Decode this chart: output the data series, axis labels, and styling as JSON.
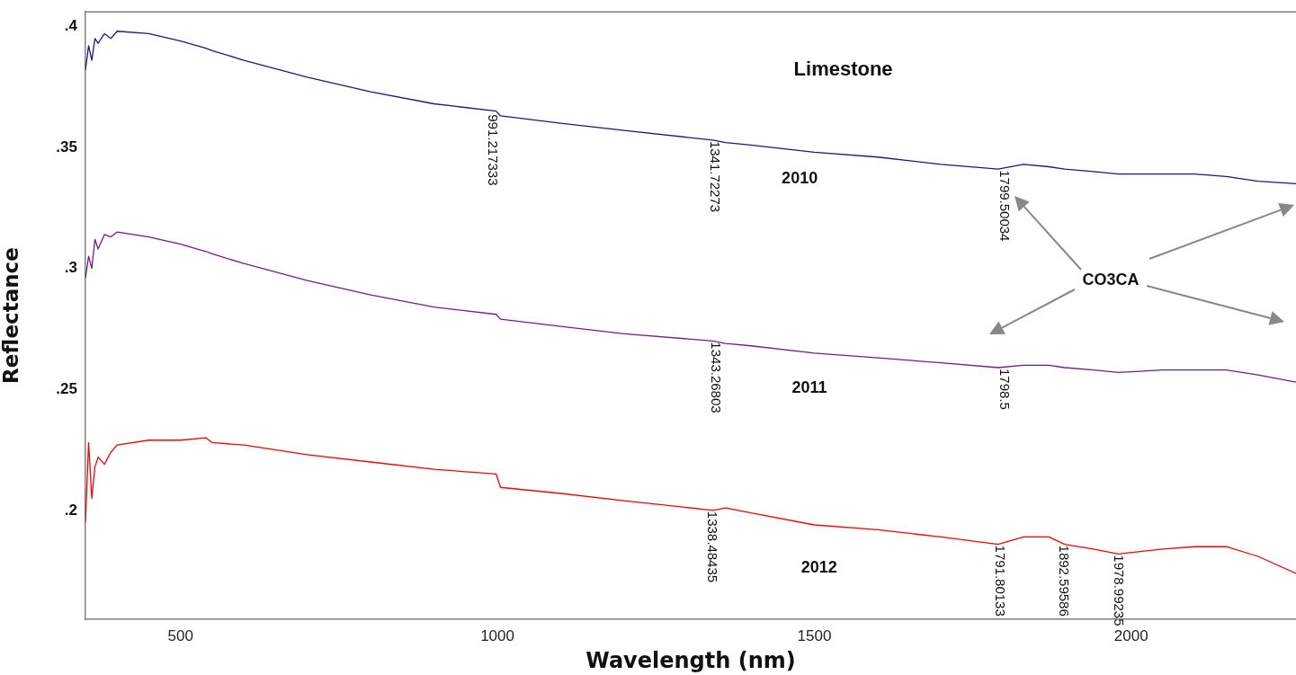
{
  "chart_data": {
    "type": "line",
    "title": "Limestone",
    "xlabel": "Wavelength (nm)",
    "ylabel": "Reflectance",
    "xlim": [
      350,
      2260
    ],
    "xticks": [
      500,
      1000,
      1500,
      2000
    ],
    "ylim": [
      0.155,
      0.406
    ],
    "yticks": [
      {
        "value": 0.2,
        "label": ".2"
      },
      {
        "value": 0.25,
        "label": ".25"
      },
      {
        "value": 0.3,
        "label": ".3"
      },
      {
        "value": 0.35,
        "label": ".35"
      },
      {
        "value": 0.4,
        "label": ".4"
      }
    ],
    "grid": false,
    "legend": false,
    "marker": "none",
    "line_style": "solid",
    "x": [
      350,
      355,
      360,
      365,
      370,
      380,
      390,
      400,
      450,
      500,
      540,
      550,
      600,
      700,
      800,
      900,
      998,
      1005,
      1100,
      1200,
      1340,
      1360,
      1400,
      1500,
      1600,
      1700,
      1790,
      1830,
      1870,
      1895,
      1940,
      1980,
      2050,
      2100,
      2150,
      2200,
      2260
    ],
    "series": [
      {
        "name": "2010",
        "color": "#1a1a80",
        "values": [
          0.382,
          0.392,
          0.386,
          0.395,
          0.393,
          0.397,
          0.395,
          0.398,
          0.397,
          0.394,
          0.391,
          0.39,
          0.386,
          0.379,
          0.373,
          0.368,
          0.365,
          0.363,
          0.36,
          0.357,
          0.353,
          0.352,
          0.351,
          0.348,
          0.346,
          0.343,
          0.341,
          0.343,
          0.342,
          0.341,
          0.34,
          0.339,
          0.339,
          0.339,
          0.338,
          0.336,
          0.335
        ]
      },
      {
        "name": "2011",
        "color": "#7a1a8a",
        "values": [
          0.296,
          0.305,
          0.3,
          0.312,
          0.308,
          0.314,
          0.313,
          0.315,
          0.313,
          0.31,
          0.307,
          0.306,
          0.302,
          0.295,
          0.289,
          0.284,
          0.281,
          0.279,
          0.276,
          0.273,
          0.27,
          0.269,
          0.268,
          0.265,
          0.263,
          0.261,
          0.259,
          0.26,
          0.26,
          0.259,
          0.258,
          0.257,
          0.258,
          0.258,
          0.258,
          0.256,
          0.253
        ]
      },
      {
        "name": "2012",
        "color": "#ff0000",
        "values": [
          0.195,
          0.228,
          0.205,
          0.218,
          0.222,
          0.219,
          0.224,
          0.227,
          0.229,
          0.229,
          0.23,
          0.228,
          0.227,
          0.223,
          0.22,
          0.217,
          0.215,
          0.2095,
          0.207,
          0.204,
          0.2,
          0.201,
          0.199,
          0.194,
          0.192,
          0.189,
          0.186,
          0.189,
          0.189,
          0.186,
          0.184,
          0.182,
          0.184,
          0.185,
          0.185,
          0.181,
          0.174
        ]
      }
    ],
    "annotations": [
      "CO3CA",
      {
        "text": "991.217333",
        "x": 991.217333,
        "y": 0.364
      },
      {
        "text": "1341.72273",
        "x": 1341.72273,
        "y": 0.353
      },
      {
        "text": "1799.50034",
        "x": 1799.50034,
        "y": 0.341
      },
      {
        "text": "1343.26803",
        "x": 1343.26803,
        "y": 0.27
      },
      {
        "text": "1798.5",
        "x": 1798.5,
        "y": 0.259
      },
      {
        "text": "1338.48435",
        "x": 1338.48435,
        "y": 0.2
      },
      {
        "text": "1791.80133",
        "x": 1791.80133,
        "y": 0.186
      },
      {
        "text": "1892.59586",
        "x": 1892.59586,
        "y": 0.186
      },
      {
        "text": "1978.99235",
        "x": 1978.99235,
        "y": 0.182
      }
    ]
  }
}
